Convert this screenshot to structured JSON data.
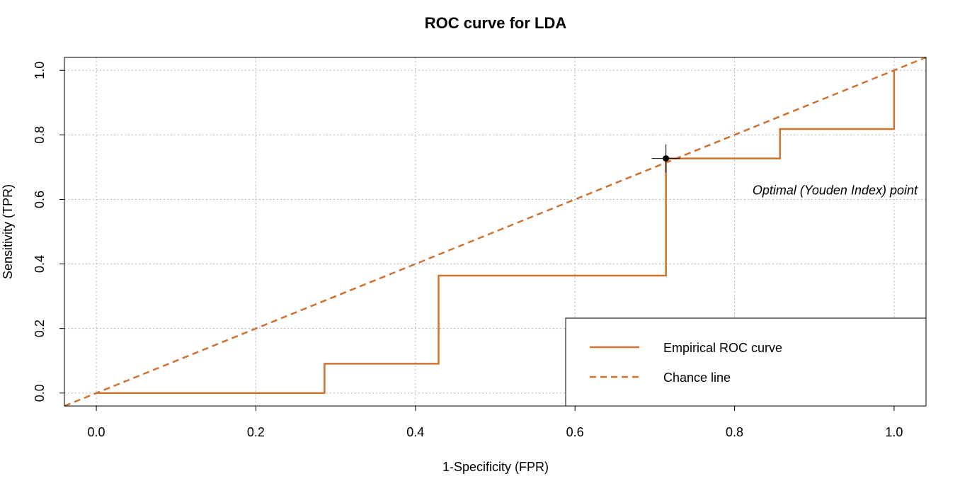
{
  "chart_data": {
    "type": "line",
    "title": "ROC curve for LDA",
    "xlabel": "1-Specificity (FPR)",
    "ylabel": "Sensitivity (TPR)",
    "xlim": [
      -0.04,
      1.04
    ],
    "ylim": [
      -0.04,
      1.04
    ],
    "x_ticks": [
      0.0,
      0.2,
      0.4,
      0.6,
      0.8,
      1.0
    ],
    "y_ticks": [
      0.0,
      0.2,
      0.4,
      0.6,
      0.8,
      1.0
    ],
    "x_tick_labels": [
      "0.0",
      "0.2",
      "0.4",
      "0.6",
      "0.8",
      "1.0"
    ],
    "y_tick_labels": [
      "0.0",
      "0.2",
      "0.4",
      "0.6",
      "0.8",
      "1.0"
    ],
    "grid": true,
    "series": [
      {
        "name": "Empirical ROC curve",
        "style": "solid-step",
        "color": "#D2702F",
        "points": [
          [
            0.0,
            0.0
          ],
          [
            0.286,
            0.0
          ],
          [
            0.286,
            0.091
          ],
          [
            0.429,
            0.091
          ],
          [
            0.429,
            0.364
          ],
          [
            0.714,
            0.364
          ],
          [
            0.714,
            0.727
          ],
          [
            0.857,
            0.727
          ],
          [
            0.857,
            0.818
          ],
          [
            1.0,
            0.818
          ],
          [
            1.0,
            1.0
          ]
        ]
      },
      {
        "name": "Chance line",
        "style": "dashed",
        "color": "#D2702F",
        "intercept": 0,
        "slope": 1
      }
    ],
    "optimal_point": {
      "x": 0.714,
      "y": 0.727
    },
    "annotation": "Optimal (Youden Index) point",
    "legend_position": "bottom-right"
  }
}
